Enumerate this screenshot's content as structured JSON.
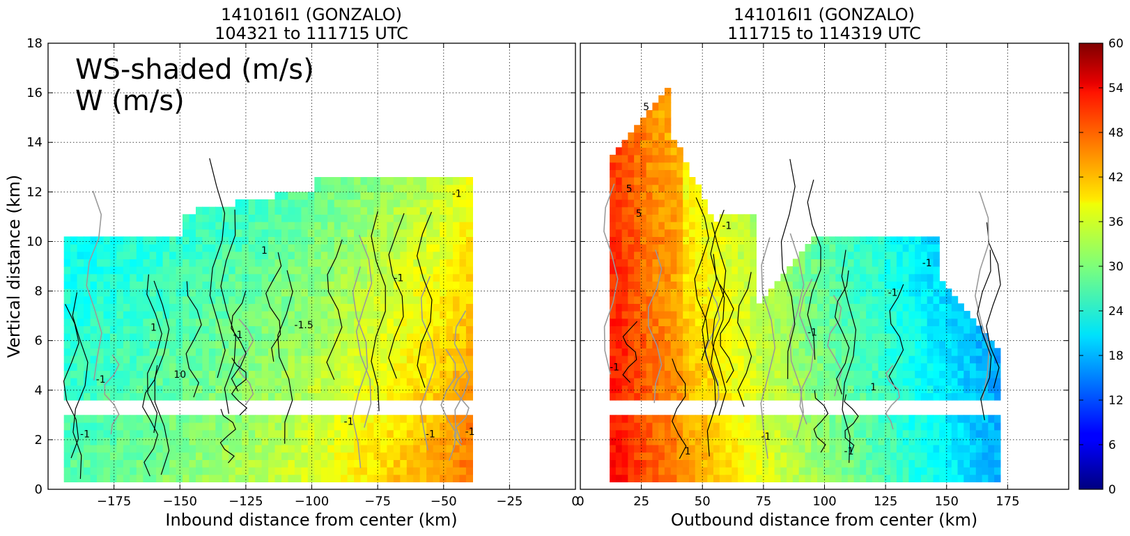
{
  "chart_data": [
    {
      "type": "heatmap",
      "title_line1": "141016I1 (GONZALO)",
      "title_line2": "104321 to 111715 UTC",
      "xlabel": "Inbound distance from center (km)",
      "ylabel": "Vertical distance (km)",
      "xlim": [
        -200,
        0
      ],
      "ylim": [
        0,
        18
      ],
      "xticks": [
        "−175",
        "−150",
        "−125",
        "−100",
        "−75",
        "−50",
        "−25",
        "0"
      ],
      "xtick_values": [
        -175,
        -150,
        -125,
        -100,
        -75,
        -50,
        -25,
        0
      ],
      "yticks": [
        "0",
        "2",
        "4",
        "6",
        "8",
        "10",
        "12",
        "14",
        "16",
        "18"
      ],
      "ytick_values": [
        0,
        2,
        4,
        6,
        8,
        10,
        12,
        14,
        16,
        18
      ],
      "grid": true,
      "legend_lines": [
        "WS-shaded (m/s)",
        "W (m/s)"
      ],
      "legend_placement": "top-left",
      "data_extent": {
        "x": [
          -194,
          -40
        ],
        "z": [
          0.3,
          13.0
        ]
      },
      "data_gap_z": [
        2.9,
        3.3
      ],
      "ws_profile": [
        {
          "x": -190,
          "ws": 28
        },
        {
          "x": -175,
          "ws": 29
        },
        {
          "x": -150,
          "ws": 31
        },
        {
          "x": -125,
          "ws": 33
        },
        {
          "x": -100,
          "ws": 36
        },
        {
          "x": -75,
          "ws": 40
        },
        {
          "x": -50,
          "ws": 44
        },
        {
          "x": -40,
          "ws": 47
        }
      ],
      "contour_labels": [
        {
          "x": -186,
          "z": 2.1,
          "text": "-1"
        },
        {
          "x": -180,
          "z": 4.3,
          "text": "-1"
        },
        {
          "x": -160,
          "z": 6.4,
          "text": "1"
        },
        {
          "x": -150,
          "z": 4.5,
          "text": "10"
        },
        {
          "x": -128,
          "z": 6.1,
          "text": "-1"
        },
        {
          "x": -118,
          "z": 9.5,
          "text": "1"
        },
        {
          "x": -103,
          "z": 6.5,
          "text": "-1.5"
        },
        {
          "x": -86,
          "z": 2.6,
          "text": "-1"
        },
        {
          "x": -67,
          "z": 8.4,
          "text": "-1"
        },
        {
          "x": -55,
          "z": 2.1,
          "text": "-1"
        },
        {
          "x": -45,
          "z": 11.8,
          "text": "-1"
        },
        {
          "x": -40,
          "z": 2.2,
          "text": "-1"
        }
      ]
    },
    {
      "type": "heatmap",
      "title_line1": "141016I1 (GONZALO)",
      "title_line2": "111715 to 114319 UTC",
      "xlabel": "Outbound distance from center (km)",
      "ylabel": "",
      "xlim": [
        0,
        200
      ],
      "ylim": [
        0,
        18
      ],
      "xticks": [
        "0",
        "25",
        "50",
        "75",
        "100",
        "125",
        "150",
        "175"
      ],
      "xtick_values": [
        0,
        25,
        50,
        75,
        100,
        125,
        150,
        175
      ],
      "grid": true,
      "data_extent": {
        "x": [
          12,
          170
        ],
        "z": [
          0.3,
          16.0
        ]
      },
      "data_gap_z": [
        2.8,
        3.3
      ],
      "ws_profile": [
        {
          "x": 15,
          "ws": 52
        },
        {
          "x": 25,
          "ws": 48
        },
        {
          "x": 50,
          "ws": 42
        },
        {
          "x": 75,
          "ws": 36
        },
        {
          "x": 100,
          "ws": 31
        },
        {
          "x": 125,
          "ws": 27
        },
        {
          "x": 150,
          "ws": 22
        },
        {
          "x": 170,
          "ws": 18
        }
      ],
      "contour_labels": [
        {
          "x": 27,
          "z": 15.3,
          "text": "5"
        },
        {
          "x": 20,
          "z": 12.0,
          "text": "5"
        },
        {
          "x": 24,
          "z": 11.0,
          "text": "5"
        },
        {
          "x": 14,
          "z": 4.8,
          "text": "-1"
        },
        {
          "x": 44,
          "z": 1.4,
          "text": "1"
        },
        {
          "x": 76,
          "z": 2.0,
          "text": "-1"
        },
        {
          "x": 110,
          "z": 1.4,
          "text": "-1"
        },
        {
          "x": 120,
          "z": 4.0,
          "text": "1"
        },
        {
          "x": 128,
          "z": 7.8,
          "text": "-1"
        },
        {
          "x": 142,
          "z": 9.0,
          "text": "-1"
        },
        {
          "x": 95,
          "z": 6.2,
          "text": "-1"
        },
        {
          "x": 60,
          "z": 10.5,
          "text": "-1"
        }
      ]
    },
    {
      "type": "colorbar",
      "min": 0,
      "max": 60,
      "ticks": [
        "0",
        "6",
        "12",
        "18",
        "24",
        "30",
        "36",
        "42",
        "48",
        "54",
        "60"
      ],
      "tick_values": [
        0,
        6,
        12,
        18,
        24,
        30,
        36,
        42,
        48,
        54,
        60
      ],
      "colormap": "jet",
      "colors": [
        "#00007f",
        "#0000ff",
        "#007fff",
        "#00ffff",
        "#7fff7f",
        "#ffff00",
        "#ff7f00",
        "#ff0000",
        "#7f0000"
      ]
    }
  ]
}
